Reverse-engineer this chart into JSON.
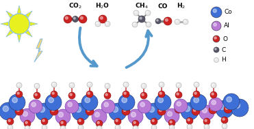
{
  "background_color": "#ffffff",
  "legend_items": [
    {
      "label": "Co",
      "color": "#3d6fd6",
      "r": 8
    },
    {
      "label": "Al",
      "color": "#b87ad4",
      "r": 7
    },
    {
      "label": "O",
      "color": "#cc2222",
      "r": 5
    },
    {
      "label": "C",
      "color": "#555566",
      "r": 4
    },
    {
      "label": "H",
      "color": "#e8e8e8",
      "r": 3.5
    }
  ],
  "sun_color": "#e8f020",
  "sun_outline": "#88bbdd",
  "lightning_color": "#f5d878",
  "lightning_outline": "#88bbdd",
  "arrow_color": "#5599cc",
  "ldh_co_color": "#3d6fd6",
  "ldh_al_color": "#b87ad4",
  "ldh_o_color": "#cc2222",
  "ldh_h_color": "#e8e8e8"
}
